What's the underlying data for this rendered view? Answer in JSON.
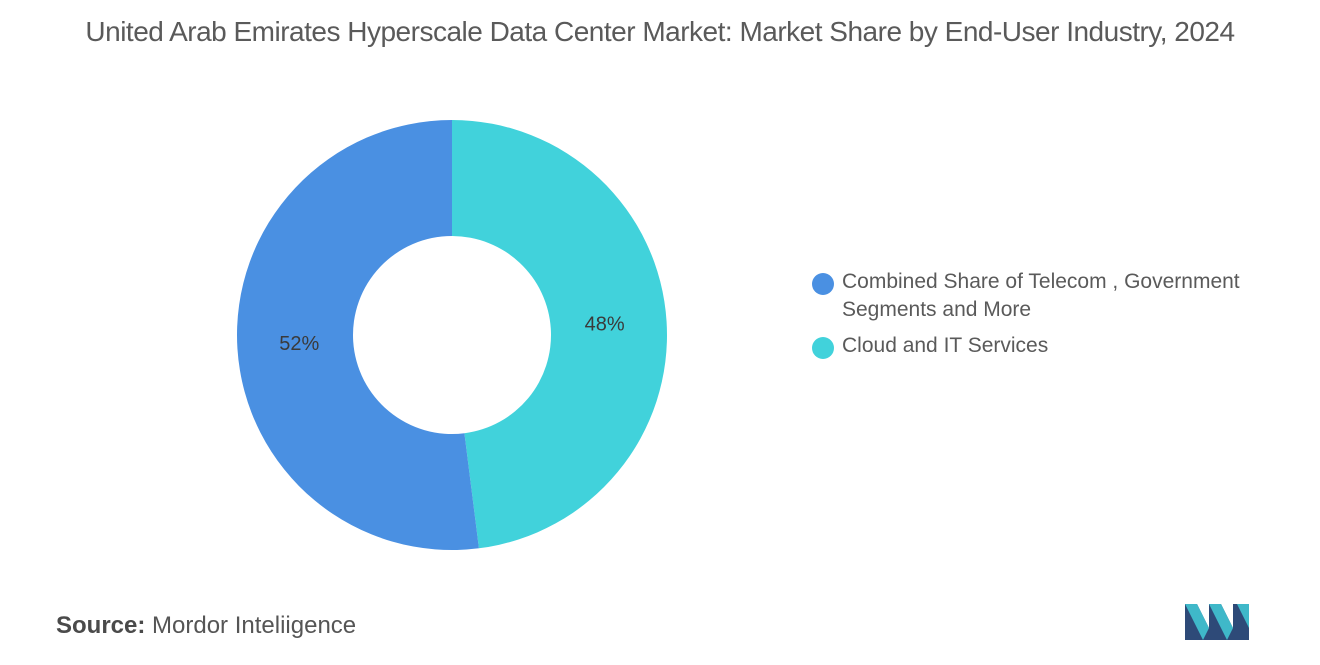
{
  "title": "United Arab Emirates Hyperscale Data Center Market: Market Share by End-User Industry, 2024",
  "source": {
    "label": "Source:",
    "value": "Mordor Inteliigence"
  },
  "colors": {
    "series_blue": "#4a90e2",
    "series_cyan": "#41d2db",
    "text": "#5a5a5a"
  },
  "logo_icon": "mordor-intelligence-logo-icon",
  "chart_data": {
    "type": "pie",
    "style": "donut",
    "title": "United Arab Emirates Hyperscale Data Center Market: Market Share by End-User Industry, 2024",
    "legend_position": "right",
    "slices": [
      {
        "label": "Combined Share of Telecom , Government Segments and More",
        "value": 52,
        "value_label": "52%",
        "color": "#4a90e2"
      },
      {
        "label": "Cloud and IT Services",
        "value": 48,
        "value_label": "48%",
        "color": "#41d2db"
      }
    ]
  }
}
